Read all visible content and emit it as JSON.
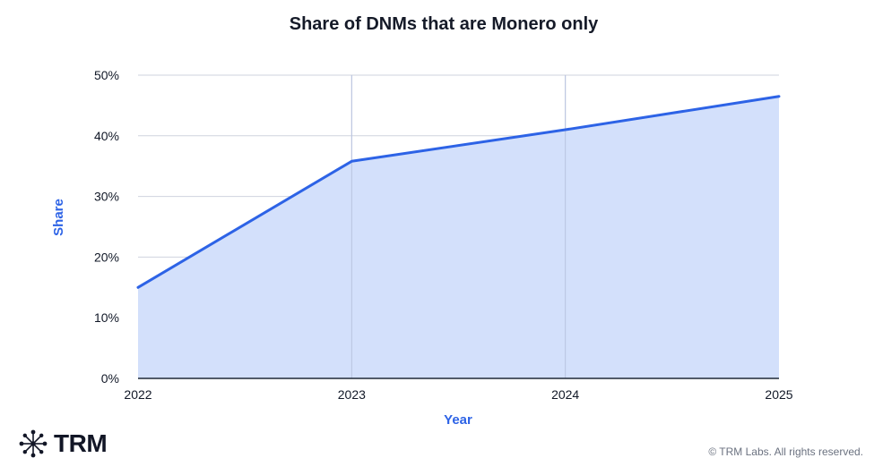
{
  "chart_data": {
    "type": "area",
    "title": "Share of DNMs that are Monero only",
    "xlabel": "Year",
    "ylabel": "Share",
    "x": [
      "2022",
      "2023",
      "2024",
      "2025"
    ],
    "values": [
      15,
      35.8,
      41,
      46.5
    ],
    "ylim": [
      0,
      50
    ],
    "yticks": [
      "0%",
      "10%",
      "20%",
      "30%",
      "40%",
      "50%"
    ],
    "grid": true,
    "colors": {
      "line": "#2d63e6",
      "fill": "#d3e0fb",
      "grid": "#cfd3de",
      "axis_label": "#2d63e6"
    }
  },
  "branding": {
    "logo_icon": "trm-network-icon",
    "logo_text": "TRM",
    "copyright": "© TRM Labs. All rights reserved."
  }
}
